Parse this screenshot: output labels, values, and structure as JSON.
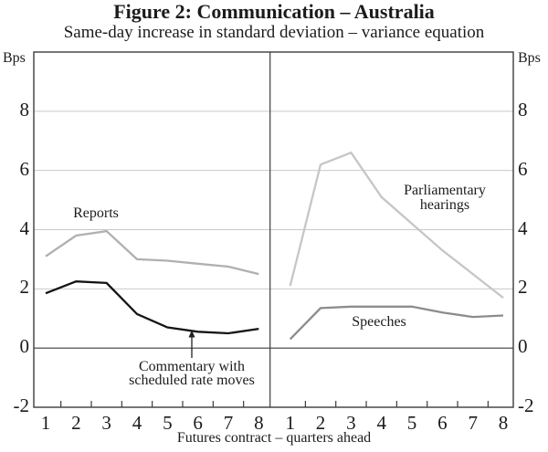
{
  "chart_data": {
    "type": "line",
    "title": "Figure 2: Communication – Australia",
    "subtitle": "Same-day increase in standard deviation – variance equation",
    "ylabel": "Bps",
    "ylabel_right": "Bps",
    "xlabel": "Futures contract – quarters ahead",
    "ylim": [
      -2,
      10
    ],
    "yticks": [
      -2,
      0,
      2,
      4,
      6,
      8
    ],
    "gridline_ticks": [
      2,
      4,
      6,
      8
    ],
    "zero_line": 0,
    "x": [
      1,
      2,
      3,
      4,
      5,
      6,
      7,
      8
    ],
    "grid": "light horizontal gridlines, solid dark zero line, two panels separated by vertical divider",
    "legend_position": "inline labels next to lines",
    "colors": {
      "frame": "#3c3c3c",
      "gridline": "#c9c9c9",
      "zero_line": "#3c3c3c",
      "text": "#1b1b1b"
    },
    "panels": [
      {
        "name": "left",
        "series": [
          {
            "name": "Reports",
            "color": "#b0b0b0",
            "values": [
              3.1,
              3.8,
              3.95,
              3.0,
              2.95,
              2.85,
              2.75,
              2.5
            ]
          },
          {
            "name": "Commentary with scheduled rate moves",
            "color": "#141414",
            "values": [
              1.85,
              2.25,
              2.2,
              1.15,
              0.7,
              0.55,
              0.5,
              0.65
            ],
            "label_lines": [
              "Commentary with",
              "scheduled rate moves"
            ],
            "annotation_arrow_x": 5.8
          }
        ]
      },
      {
        "name": "right",
        "series": [
          {
            "name": "Parliamentary hearings",
            "color": "#c6c6c6",
            "values": [
              2.1,
              6.2,
              6.6,
              5.1,
              4.2,
              3.3,
              2.5,
              1.7
            ],
            "label_lines": [
              "Parliamentary",
              "hearings"
            ]
          },
          {
            "name": "Speeches",
            "color": "#8c8c8c",
            "values": [
              0.3,
              1.35,
              1.4,
              1.4,
              1.4,
              1.2,
              1.05,
              1.1
            ]
          }
        ]
      }
    ]
  }
}
